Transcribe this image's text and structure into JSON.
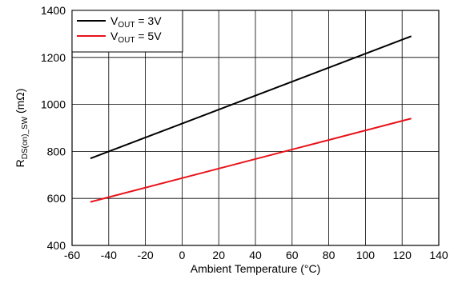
{
  "chart_data": {
    "type": "line",
    "xlabel": "Ambient Temperature (°C)",
    "ylabel_main": "R",
    "ylabel_sub": "DS(on)_SW",
    "ylabel_unit": " (mΩ)",
    "xlim": [
      -60,
      140
    ],
    "ylim": [
      400,
      1400
    ],
    "xticks": [
      -60,
      -40,
      -20,
      0,
      20,
      40,
      60,
      80,
      100,
      120,
      140
    ],
    "yticks": [
      400,
      600,
      800,
      1000,
      1200,
      1400
    ],
    "grid": true,
    "legend_position": "top-left",
    "series": [
      {
        "name_main": "V",
        "name_sub": "OUT",
        "name_rest": " = 3V",
        "color": "#000000",
        "x": [
          -50,
          125
        ],
        "y": [
          770,
          1290
        ]
      },
      {
        "name_main": "V",
        "name_sub": "OUT",
        "name_rest": " = 5V",
        "color": "#e8141b",
        "x": [
          -50,
          125
        ],
        "y": [
          585,
          940
        ]
      }
    ]
  }
}
